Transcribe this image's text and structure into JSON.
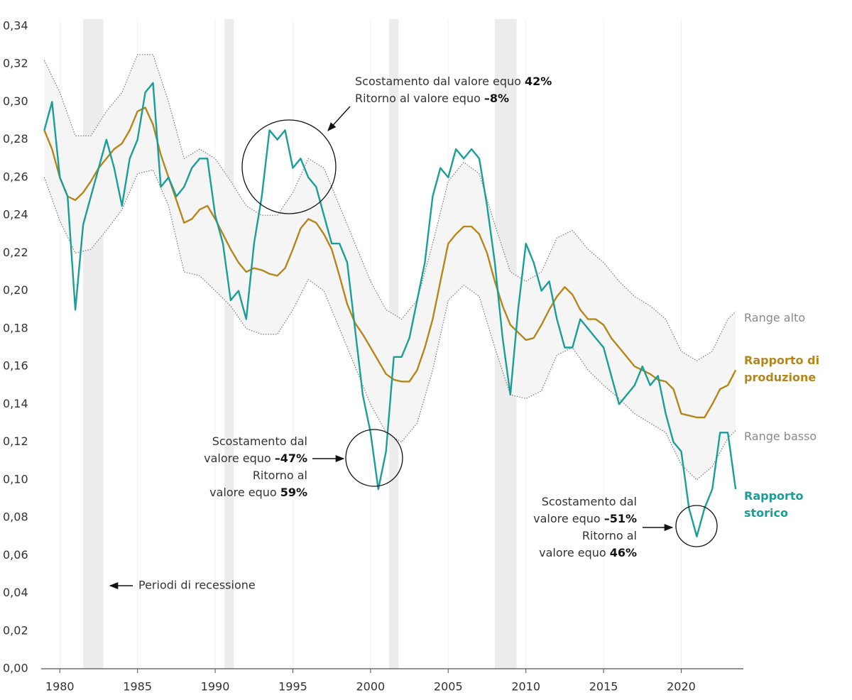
{
  "chart_data": {
    "type": "line",
    "xlim": [
      1978.8,
      2024
    ],
    "ylim": [
      0,
      0.34
    ],
    "xticks": [
      1980,
      1985,
      1990,
      1995,
      2000,
      2005,
      2010,
      2015,
      2020
    ],
    "yticks": [
      {
        "value": 0,
        "label": "0,00"
      },
      {
        "value": 0.02,
        "label": "0,02"
      },
      {
        "value": 0.04,
        "label": "0,04"
      },
      {
        "value": 0.06,
        "label": "0,06"
      },
      {
        "value": 0.08,
        "label": "0,08"
      },
      {
        "value": 0.1,
        "label": "0,10"
      },
      {
        "value": 0.12,
        "label": "0,12"
      },
      {
        "value": 0.14,
        "label": "0,14"
      },
      {
        "value": 0.16,
        "label": "0,16"
      },
      {
        "value": 0.18,
        "label": "0,18"
      },
      {
        "value": 0.2,
        "label": "0,20"
      },
      {
        "value": 0.22,
        "label": "0,22"
      },
      {
        "value": 0.24,
        "label": "0,24"
      },
      {
        "value": 0.26,
        "label": "0,26"
      },
      {
        "value": 0.28,
        "label": "0,28"
      },
      {
        "value": 0.3,
        "label": "0,30"
      },
      {
        "value": 0.32,
        "label": "0,32"
      },
      {
        "value": 0.34,
        "label": "0,34"
      }
    ],
    "grid": true,
    "recessions": [
      [
        1981.5,
        1982.8
      ],
      [
        1990.6,
        1991.2
      ],
      [
        2001.2,
        2001.8
      ],
      [
        2008.0,
        2009.4
      ]
    ],
    "recession_label": "Periodi di recessione",
    "series": [
      {
        "name": "Range alto",
        "color": "#7a7a7a",
        "style": "dotted",
        "x": [
          1979,
          1980,
          1981,
          1982,
          1983,
          1984,
          1985,
          1986,
          1987,
          1988,
          1989,
          1990,
          1991,
          1992,
          1993,
          1994,
          1995,
          1996,
          1997,
          1998,
          1999,
          2000,
          2001,
          2002,
          2003,
          2004,
          2005,
          2006,
          2007,
          2008,
          2009,
          2010,
          2011,
          2012,
          2013,
          2014,
          2015,
          2016,
          2017,
          2018,
          2019,
          2020,
          2021,
          2022,
          2023,
          2023.5
        ],
        "values": [
          0.322,
          0.305,
          0.282,
          0.282,
          0.295,
          0.305,
          0.325,
          0.325,
          0.3,
          0.27,
          0.275,
          0.27,
          0.258,
          0.245,
          0.24,
          0.24,
          0.252,
          0.27,
          0.265,
          0.245,
          0.225,
          0.205,
          0.19,
          0.185,
          0.195,
          0.225,
          0.258,
          0.268,
          0.262,
          0.235,
          0.21,
          0.205,
          0.21,
          0.228,
          0.232,
          0.222,
          0.215,
          0.205,
          0.197,
          0.192,
          0.185,
          0.168,
          0.163,
          0.168,
          0.185,
          0.189
        ]
      },
      {
        "name": "Rapporto di produzione",
        "color": "#b5861a",
        "style": "solid",
        "x": [
          1979,
          1979.5,
          1980,
          1980.5,
          1981,
          1981.5,
          1982,
          1982.5,
          1983,
          1983.5,
          1984,
          1984.5,
          1985,
          1985.5,
          1986,
          1986.5,
          1987,
          1987.5,
          1988,
          1988.5,
          1989,
          1989.5,
          1990,
          1990.5,
          1991,
          1991.5,
          1992,
          1992.5,
          1993,
          1993.5,
          1994,
          1994.5,
          1995,
          1995.5,
          1996,
          1996.5,
          1997,
          1997.5,
          1998,
          1998.5,
          1999,
          1999.5,
          2000,
          2000.5,
          2001,
          2001.5,
          2002,
          2002.5,
          2003,
          2003.5,
          2004,
          2004.5,
          2005,
          2005.5,
          2006,
          2006.5,
          2007,
          2007.5,
          2008,
          2008.5,
          2009,
          2009.5,
          2010,
          2010.5,
          2011,
          2011.5,
          2012,
          2012.5,
          2013,
          2013.5,
          2014,
          2014.5,
          2015,
          2015.5,
          2016,
          2016.5,
          2017,
          2017.5,
          2018,
          2018.5,
          2019,
          2019.5,
          2020,
          2020.5,
          2021,
          2021.5,
          2022,
          2022.5,
          2023,
          2023.5
        ],
        "values": [
          0.285,
          0.275,
          0.26,
          0.25,
          0.248,
          0.252,
          0.258,
          0.265,
          0.27,
          0.275,
          0.278,
          0.285,
          0.295,
          0.297,
          0.288,
          0.272,
          0.26,
          0.248,
          0.236,
          0.238,
          0.243,
          0.245,
          0.238,
          0.23,
          0.222,
          0.215,
          0.21,
          0.212,
          0.211,
          0.209,
          0.208,
          0.212,
          0.222,
          0.233,
          0.238,
          0.236,
          0.23,
          0.222,
          0.208,
          0.193,
          0.183,
          0.177,
          0.17,
          0.163,
          0.156,
          0.153,
          0.152,
          0.152,
          0.158,
          0.17,
          0.185,
          0.205,
          0.225,
          0.23,
          0.234,
          0.234,
          0.23,
          0.22,
          0.205,
          0.192,
          0.182,
          0.178,
          0.174,
          0.175,
          0.182,
          0.19,
          0.197,
          0.202,
          0.198,
          0.19,
          0.185,
          0.185,
          0.182,
          0.175,
          0.17,
          0.165,
          0.16,
          0.158,
          0.156,
          0.153,
          0.152,
          0.148,
          0.135,
          0.134,
          0.133,
          0.133,
          0.14,
          0.148,
          0.15,
          0.158
        ]
      },
      {
        "name": "Range basso",
        "color": "#7a7a7a",
        "style": "dotted",
        "x": [
          1979,
          1980,
          1981,
          1982,
          1983,
          1984,
          1985,
          1986,
          1987,
          1988,
          1989,
          1990,
          1991,
          1992,
          1993,
          1994,
          1995,
          1996,
          1997,
          1998,
          1999,
          2000,
          2001,
          2002,
          2003,
          2004,
          2005,
          2006,
          2007,
          2008,
          2009,
          2010,
          2011,
          2012,
          2013,
          2014,
          2015,
          2016,
          2017,
          2018,
          2019,
          2020,
          2021,
          2022,
          2023,
          2023.5
        ],
        "values": [
          0.26,
          0.237,
          0.22,
          0.222,
          0.232,
          0.243,
          0.262,
          0.264,
          0.245,
          0.21,
          0.208,
          0.2,
          0.192,
          0.18,
          0.177,
          0.177,
          0.19,
          0.206,
          0.2,
          0.18,
          0.16,
          0.14,
          0.125,
          0.12,
          0.13,
          0.158,
          0.195,
          0.203,
          0.197,
          0.17,
          0.145,
          0.143,
          0.147,
          0.166,
          0.17,
          0.158,
          0.15,
          0.143,
          0.135,
          0.13,
          0.125,
          0.108,
          0.1,
          0.107,
          0.122,
          0.126
        ]
      },
      {
        "name": "Rapporto storico",
        "color": "#1a9e96",
        "style": "solid",
        "x": [
          1979,
          1979.5,
          1980,
          1980.5,
          1981,
          1981.5,
          1982,
          1982.5,
          1983,
          1983.5,
          1984,
          1984.5,
          1985,
          1985.5,
          1986,
          1986.5,
          1987,
          1987.5,
          1988,
          1988.5,
          1989,
          1989.5,
          1990,
          1990.5,
          1991,
          1991.5,
          1992,
          1992.5,
          1993,
          1993.5,
          1994,
          1994.5,
          1995,
          1995.5,
          1996,
          1996.5,
          1997,
          1997.5,
          1998,
          1998.5,
          1999,
          1999.5,
          2000,
          2000.5,
          2001,
          2001.5,
          2002,
          2002.5,
          2003,
          2003.5,
          2004,
          2004.5,
          2005,
          2005.5,
          2006,
          2006.5,
          2007,
          2007.5,
          2008,
          2008.5,
          2009,
          2009.5,
          2010,
          2010.5,
          2011,
          2011.5,
          2012,
          2012.5,
          2013,
          2013.5,
          2014,
          2014.5,
          2015,
          2015.5,
          2016,
          2016.5,
          2017,
          2017.5,
          2018,
          2018.5,
          2019,
          2019.5,
          2020,
          2020.5,
          2021,
          2021.5,
          2022,
          2022.5,
          2023,
          2023.5
        ],
        "values": [
          0.285,
          0.3,
          0.26,
          0.25,
          0.19,
          0.235,
          0.25,
          0.265,
          0.28,
          0.265,
          0.245,
          0.27,
          0.28,
          0.305,
          0.31,
          0.255,
          0.26,
          0.25,
          0.255,
          0.265,
          0.27,
          0.27,
          0.24,
          0.225,
          0.195,
          0.2,
          0.185,
          0.225,
          0.25,
          0.285,
          0.28,
          0.285,
          0.265,
          0.27,
          0.26,
          0.255,
          0.24,
          0.225,
          0.225,
          0.215,
          0.18,
          0.145,
          0.125,
          0.095,
          0.115,
          0.165,
          0.165,
          0.175,
          0.195,
          0.215,
          0.25,
          0.265,
          0.26,
          0.275,
          0.27,
          0.275,
          0.27,
          0.245,
          0.215,
          0.175,
          0.145,
          0.19,
          0.225,
          0.215,
          0.2,
          0.205,
          0.185,
          0.17,
          0.17,
          0.185,
          0.18,
          0.175,
          0.17,
          0.155,
          0.14,
          0.145,
          0.15,
          0.16,
          0.15,
          0.155,
          0.135,
          0.12,
          0.115,
          0.085,
          0.07,
          0.085,
          0.095,
          0.125,
          0.125,
          0.095
        ]
      }
    ],
    "annotations": [
      {
        "lines": [
          [
            "Scostamento dal valore equo",
            "42%"
          ],
          [
            "Ritorno al valore equo",
            "–8%"
          ]
        ]
      },
      {
        "lines": [
          [
            "Scostamento dal"
          ],
          [
            "valore equo",
            "–47%"
          ],
          [
            "Ritorno al"
          ],
          [
            "valore equo",
            "59%"
          ]
        ]
      },
      {
        "lines": [
          [
            "Scostamento dal"
          ],
          [
            "valore equo",
            "–51%"
          ],
          [
            "Ritorno al"
          ],
          [
            "valore equo",
            "46%"
          ]
        ]
      }
    ]
  }
}
